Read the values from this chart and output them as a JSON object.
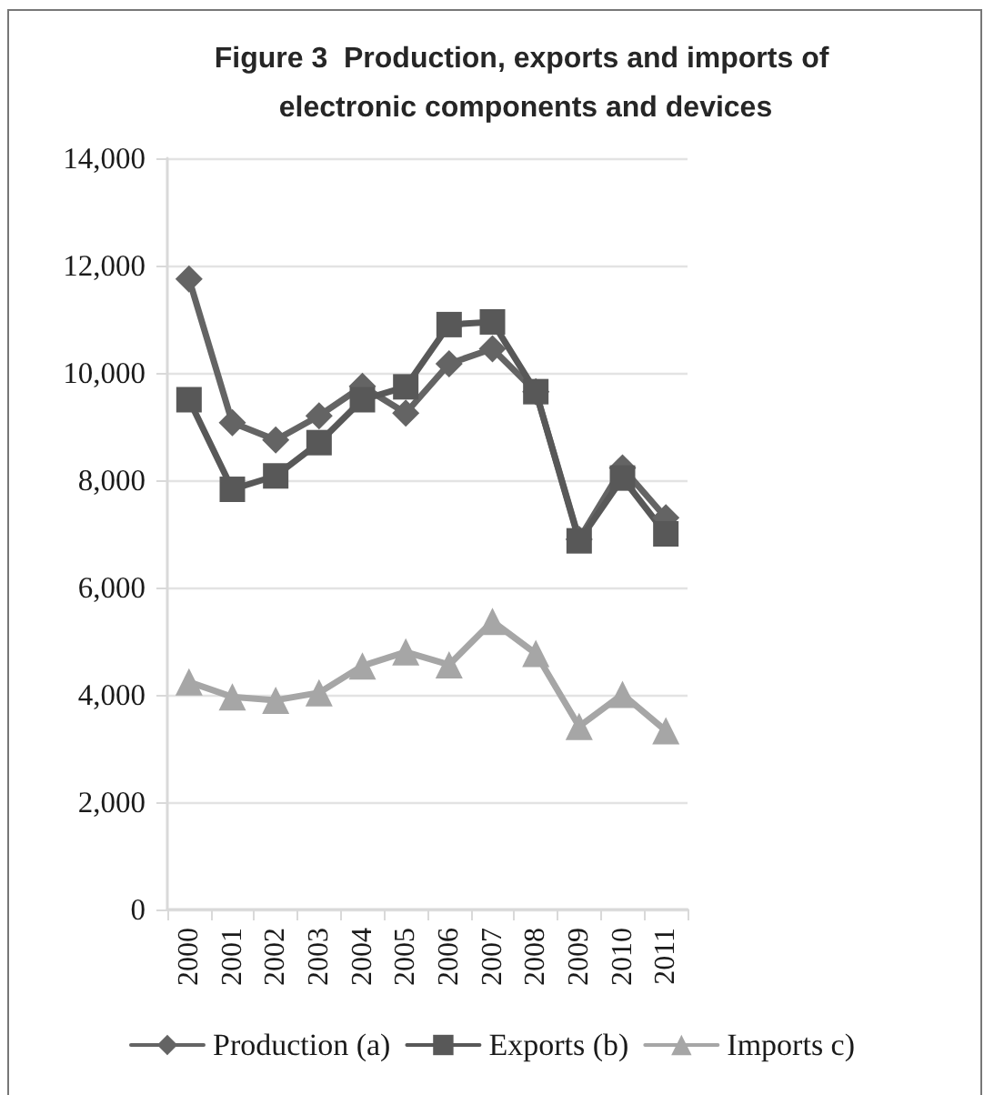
{
  "chart_data": {
    "type": "line",
    "title": "Figure 3  Production, exports and imports of electronic components and devices",
    "categories": [
      "2000",
      "2001",
      "2002",
      "2003",
      "2004",
      "2005",
      "2006",
      "2007",
      "2008",
      "2009",
      "2010",
      "2011"
    ],
    "series": [
      {
        "name": "Production (a)",
        "color": "#646464",
        "marker": "diamond",
        "values": [
          11750,
          9070,
          8750,
          9200,
          9750,
          9250,
          10170,
          10450,
          9650,
          6900,
          8230,
          7300
        ]
      },
      {
        "name": "Exports (b)",
        "color": "#585858",
        "marker": "square",
        "values": [
          9500,
          7830,
          8080,
          8700,
          9500,
          9740,
          10900,
          10950,
          9650,
          6870,
          8040,
          7000
        ]
      },
      {
        "name": "Imports c)",
        "color": "#a6a6a6",
        "marker": "triangle",
        "values": [
          4240,
          3960,
          3900,
          4040,
          4540,
          4800,
          4560,
          5370,
          4770,
          3410,
          4010,
          3330
        ]
      }
    ],
    "ylim": [
      0,
      14000
    ],
    "yticks": [
      {
        "value": 0,
        "label": "0"
      },
      {
        "value": 2000,
        "label": "2,000"
      },
      {
        "value": 4000,
        "label": "4,000"
      },
      {
        "value": 6000,
        "label": "6,000"
      },
      {
        "value": 8000,
        "label": "8,000"
      },
      {
        "value": 10000,
        "label": "10,000"
      },
      {
        "value": 12000,
        "label": "12,000"
      },
      {
        "value": 14000,
        "label": "14,000"
      }
    ],
    "grid": "y",
    "legend": "bottom",
    "line_style": "solid"
  }
}
